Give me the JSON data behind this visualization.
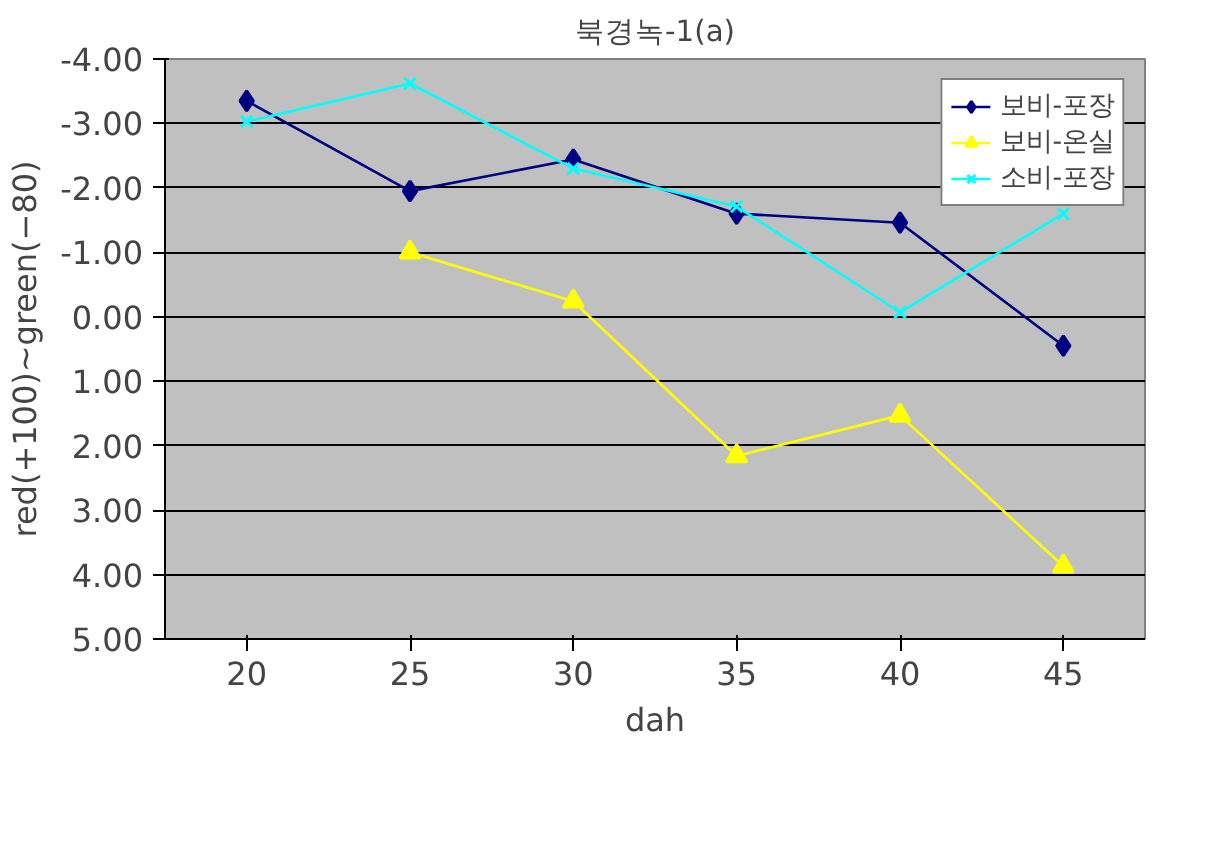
{
  "chart_data": {
    "type": "line",
    "title": "북경녹-1(a)",
    "xlabel": "dah",
    "ylabel": "red(+100)~green(−80)",
    "categories": [
      "20",
      "25",
      "30",
      "35",
      "40",
      "45"
    ],
    "series": [
      {
        "name": "보비-포장",
        "color": "#000080",
        "marker": "diamond",
        "values": [
          -3.35,
          -1.95,
          -2.44,
          -1.6,
          -1.46,
          0.45
        ]
      },
      {
        "name": "보비-온실",
        "color": "#ffff00",
        "marker": "triangle",
        "values": [
          null,
          -1.0,
          -0.24,
          2.16,
          1.53,
          3.87
        ]
      },
      {
        "name": "소비-포장",
        "color": "#00ffff",
        "marker": "cross",
        "values": [
          -3.03,
          -3.62,
          -2.3,
          -1.71,
          -0.07,
          -1.6
        ]
      }
    ],
    "ylim": [
      5,
      -4
    ],
    "yticks": [
      {
        "value": -4,
        "label": "-4.00"
      },
      {
        "value": -3,
        "label": "-3.00"
      },
      {
        "value": -2,
        "label": "-2.00"
      },
      {
        "value": -1,
        "label": "-1.00"
      },
      {
        "value": 0,
        "label": "0.00"
      },
      {
        "value": 1,
        "label": "1.00"
      },
      {
        "value": 2,
        "label": "2.00"
      },
      {
        "value": 3,
        "label": "3.00"
      },
      {
        "value": 4,
        "label": "4.00"
      },
      {
        "value": 5,
        "label": "5.00"
      }
    ],
    "grid": "y",
    "legend": "top right",
    "line_style": "solid"
  }
}
